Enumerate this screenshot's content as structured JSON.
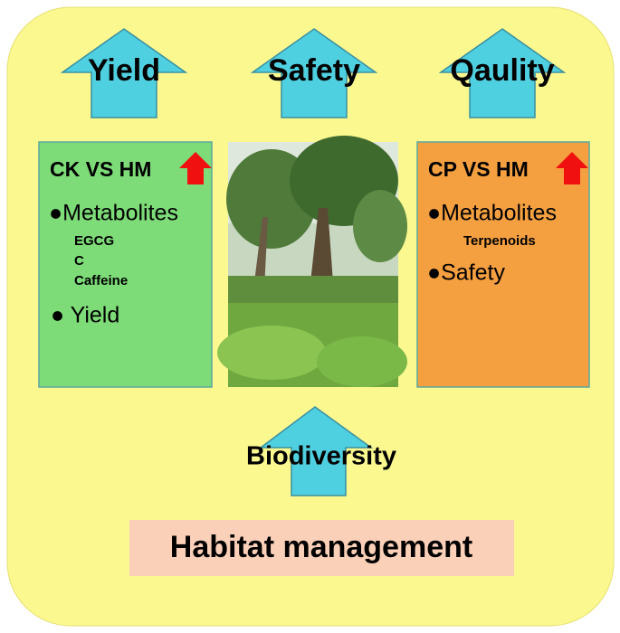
{
  "top_labels": [
    "Yield",
    "Safety",
    "Qaulity"
  ],
  "left_panel": {
    "title": "CK VS HM",
    "heading": "●Metabolites",
    "sub_items": [
      "EGCG",
      "C",
      "Caffeine"
    ],
    "last_item": "● Yield"
  },
  "right_panel": {
    "title": "CP VS HM",
    "heading": "●Metabolites",
    "sub_items": [
      "Terpenoids"
    ],
    "last_item": "●Safety"
  },
  "bottom_label": "Biodiversity",
  "base_label": "Habitat management"
}
